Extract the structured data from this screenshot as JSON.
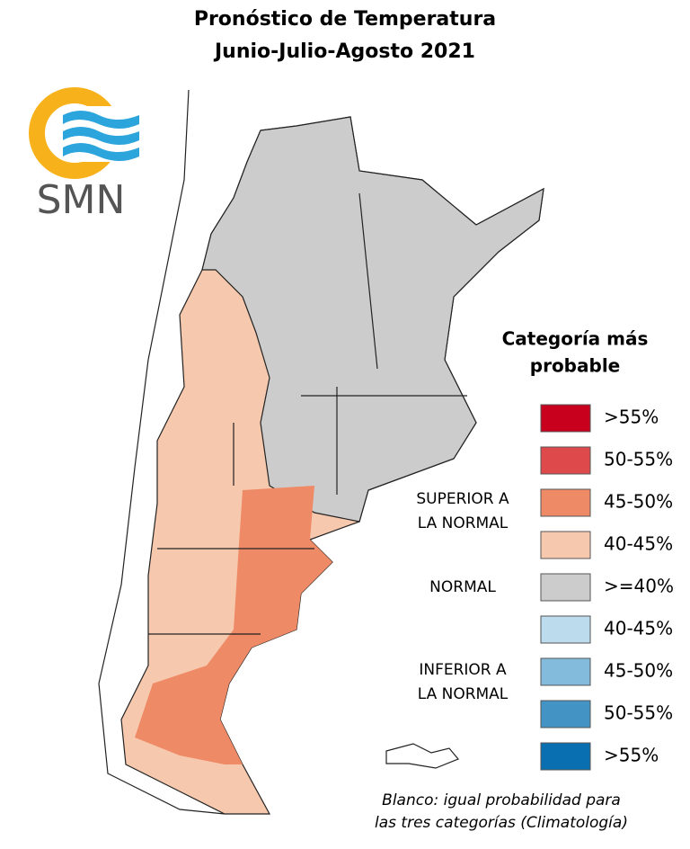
{
  "header": {
    "title_line1": "Pronóstico de Temperatura",
    "title_line2": "Junio-Julio-Agosto 2021"
  },
  "logo": {
    "text": "SMN"
  },
  "legend": {
    "title_line1": "Categoría más",
    "title_line2": "probable",
    "items": [
      {
        "label": ">55%",
        "color": "#c8001e"
      },
      {
        "label": "50-55%",
        "color": "#de4a4c"
      },
      {
        "label": "45-50%",
        "color": "#ef8a66"
      },
      {
        "label": "40-45%",
        "color": "#f6c8ae"
      },
      {
        "label": ">=40%",
        "color": "#cccccc"
      },
      {
        "label": "40-45%",
        "color": "#bcdcee"
      },
      {
        "label": "45-50%",
        "color": "#82bbdb"
      },
      {
        "label": "50-55%",
        "color": "#4393c4"
      },
      {
        "label": ">55%",
        "color": "#0a6fb0"
      }
    ],
    "groups": [
      {
        "lines": [
          "SUPERIOR A",
          "LA NORMAL"
        ]
      },
      {
        "lines": [
          "NORMAL"
        ]
      },
      {
        "lines": [
          "INFERIOR A",
          "LA NORMAL"
        ]
      }
    ]
  },
  "footnote": {
    "line1": "Blanco: igual probabilidad para",
    "line2": "las tres categorías (Climatología)"
  }
}
